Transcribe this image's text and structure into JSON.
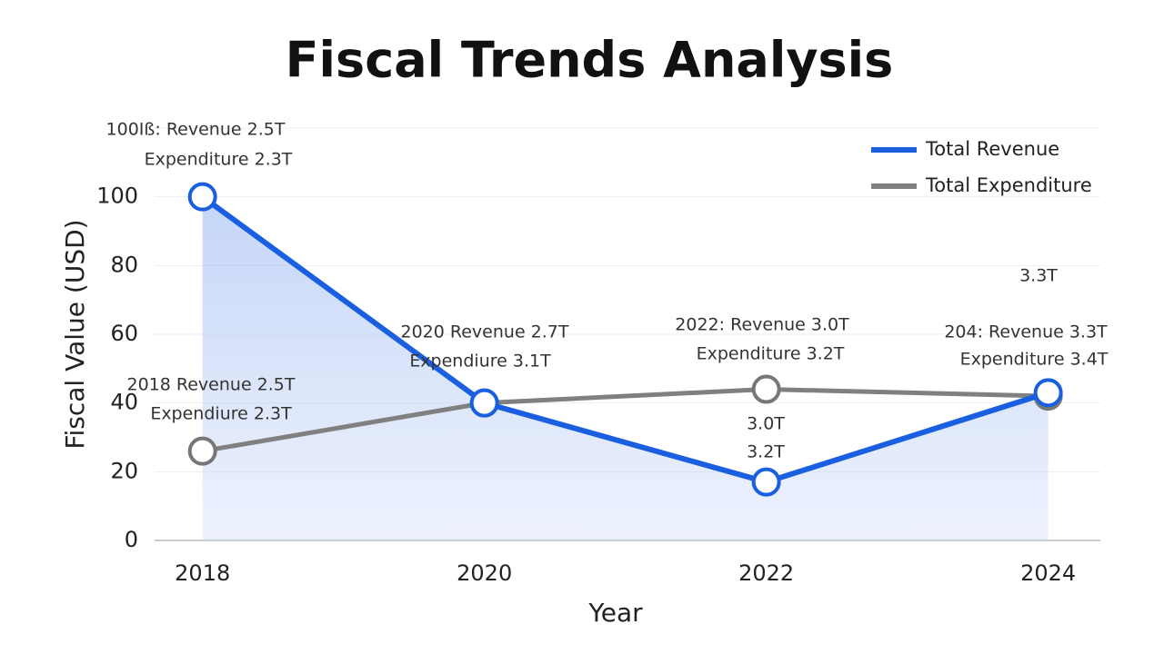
{
  "chart_data": {
    "type": "line",
    "title": "Fiscal Trends Analysis",
    "x_label": "Year",
    "y_label": "Fiscal Value (USD)",
    "x": [
      2018,
      2020,
      2022,
      2024
    ],
    "series": [
      {
        "name": "Total Revenue",
        "color": "#1a5fe0",
        "values": [
          100,
          40,
          17,
          43
        ]
      },
      {
        "name": "Total Expenditure",
        "color": "#808080",
        "values": [
          26,
          40,
          44,
          42
        ]
      }
    ],
    "xlim": [
      2017.66,
      2024.37
    ],
    "xticks": [
      2018,
      2020,
      2022,
      2024
    ],
    "ylim": [
      0,
      120
    ],
    "yticks": [
      0,
      20,
      40,
      60,
      80,
      100
    ],
    "grid": true,
    "legend": "top-right",
    "annotations": [
      "100Iß: Revenue 2.5T",
      "Expenditure 2.3T",
      "2018 Revenue 2.5T",
      "Expendiure 2.3T",
      "2020 Revenue 2.7T",
      "Expendiure 3.1T",
      "2022: Revenue 3.0T",
      "Expenditure 3.2T",
      "3.0T",
      "3.2T",
      "3.3T",
      "204: Revenue 3.3T",
      "Expenditure 3.4T"
    ]
  }
}
